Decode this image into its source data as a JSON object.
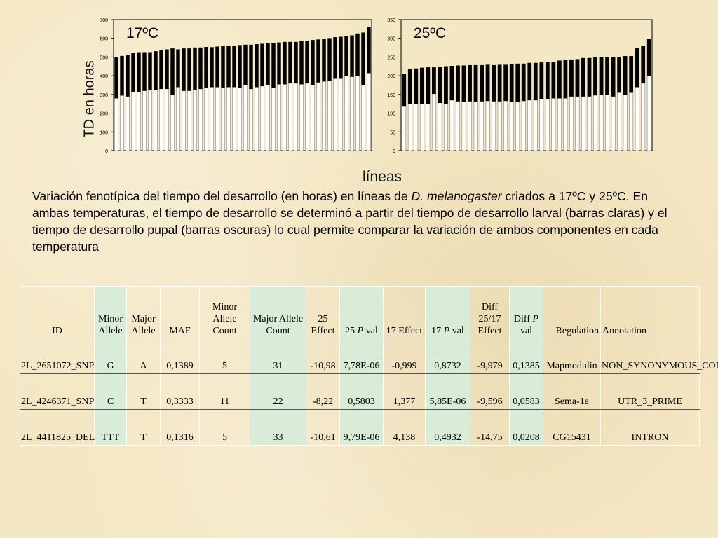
{
  "chart_data": [
    {
      "type": "bar",
      "stacked": true,
      "title": "17ºC",
      "ylabel": "TD en horas",
      "xlabel": "líneas",
      "ylim": [
        0,
        700
      ],
      "yticks": [
        "0",
        "100",
        "200",
        "300",
        "400",
        "500",
        "600",
        "700"
      ],
      "series": [
        {
          "values": [
            280,
            295,
            290,
            315,
            315,
            320,
            325,
            325,
            330,
            330,
            300,
            340,
            320,
            320,
            325,
            330,
            335,
            340,
            340,
            335,
            340,
            340,
            335,
            350,
            330,
            340,
            345,
            350,
            335,
            355,
            355,
            360,
            360,
            355,
            360,
            350,
            365,
            370,
            375,
            385,
            385,
            400,
            395,
            400,
            350,
            415
          ]
        },
        {
          "values": [
            220,
            210,
            220,
            205,
            210,
            205,
            200,
            205,
            205,
            210,
            245,
            200,
            225,
            225,
            225,
            220,
            218,
            212,
            215,
            222,
            218,
            220,
            228,
            215,
            235,
            228,
            225,
            222,
            240,
            222,
            225,
            220,
            220,
            228,
            225,
            240,
            228,
            225,
            225,
            220,
            222,
            210,
            220,
            225,
            280,
            245
          ]
        }
      ],
      "colors": [
        "#ffffff",
        "#000000"
      ]
    },
    {
      "type": "bar",
      "stacked": true,
      "title": "25ºC",
      "xlabel": "líneas",
      "ylim": [
        0,
        350
      ],
      "yticks": [
        "0",
        "50",
        "100",
        "150",
        "200",
        "250",
        "300",
        "350"
      ],
      "series": [
        {
          "values": [
            118,
            125,
            126,
            125,
            125,
            152,
            128,
            126,
            135,
            132,
            130,
            132,
            131,
            132,
            133,
            132,
            132,
            133,
            130,
            130,
            133,
            135,
            135,
            138,
            138,
            140,
            140,
            140,
            145,
            145,
            145,
            145,
            148,
            150,
            150,
            145,
            155,
            150,
            155,
            170,
            180,
            200
          ]
        },
        {
          "values": [
            87,
            93,
            93,
            96,
            97,
            70,
            96,
            99,
            91,
            95,
            97,
            96,
            97,
            96,
            96,
            96,
            97,
            96,
            100,
            102,
            99,
            99,
            99,
            97,
            98,
            97,
            100,
            102,
            98,
            99,
            102,
            102,
            101,
            100,
            100,
            105,
            95,
            102,
            97,
            103,
            100,
            99
          ]
        }
      ],
      "colors": [
        "#ffffff",
        "#000000"
      ]
    }
  ],
  "caption": {
    "part1": "Variación fenotípica del tiempo del desarrollo (en horas) en líneas de ",
    "species": "D. melanogaster",
    "part2": " criados a 17ºC y 25ºC. En ambas temperaturas, el tiempo de desarrollo se determinó a partir del tiempo de desarrollo larval (barras claras) y el tiempo de desarrollo pupal (barras oscuras) lo cual permite comparar la variación de ambos componentes en cada temperatura"
  },
  "table": {
    "headers": {
      "id": "ID",
      "minor_allele": "Minor Allele",
      "major_allele": "Major Allele",
      "maf": "MAF",
      "minor_count": "Minor Allele Count",
      "major_count": "Major Allele Count",
      "effect25": "25 Effect",
      "pval25_pre": "25 ",
      "pval25_p": "P",
      "pval25_post": " val",
      "effect17": "17 Effect",
      "pval17_pre": "17 ",
      "pval17_p": "P",
      "pval17_post": " val",
      "diff_effect": "Diff 25/17 Effect",
      "diff_p_pre": "Diff ",
      "diff_p_p": "P",
      "diff_p_post": " val",
      "regulation": "Regulation",
      "annotation": "Annotation"
    },
    "rows": [
      {
        "id": "2L_2651072_SNP",
        "minor": "G",
        "major": "A",
        "maf": "0,1389",
        "minor_count": "5",
        "major_count": "31",
        "effect25": "-10,98",
        "pval25": "7,78E-06",
        "effect17": "-0,999",
        "pval17": "0,8732",
        "diff_effect": "-9,979",
        "diff_p": "0,1385",
        "regulation": "Mapmodulin",
        "annotation": "NON_SYNONYMOUS_CODING"
      },
      {
        "id": "2L_4246371_SNP",
        "minor": "C",
        "major": "T",
        "maf": "0,3333",
        "minor_count": "11",
        "major_count": "22",
        "effect25": "-8,22",
        "pval25": "0,5803",
        "effect17": "1,377",
        "pval17": "5,85E-06",
        "diff_effect": "-9,596",
        "diff_p": "0,0583",
        "regulation": "Sema-1a",
        "annotation": "UTR_3_PRIME"
      },
      {
        "id": "2L_4411825_DEL",
        "minor": "TTT",
        "major": "T",
        "maf": "0,1316",
        "minor_count": "5",
        "major_count": "33",
        "effect25": "-10,61",
        "pval25": "9,79E-06",
        "effect17": "4,138",
        "pval17": "0,4932",
        "diff_effect": "-14,75",
        "diff_p": "0,0208",
        "regulation": "CG15431",
        "annotation": "INTRON"
      }
    ]
  }
}
